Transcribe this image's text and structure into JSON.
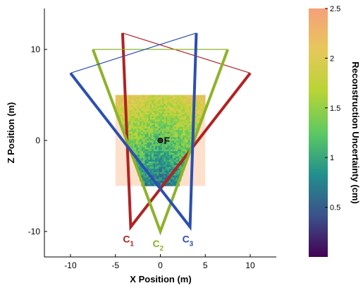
{
  "chart_data": {
    "type": "scatter",
    "title": "",
    "xlabel": "X Position (m)",
    "ylabel": "Z Position (m)",
    "xlim": [
      -12.9,
      12.9
    ],
    "ylim": [
      -12.8,
      14.5
    ],
    "x_ticks": [
      -10,
      -5,
      0,
      5,
      10
    ],
    "y_ticks": [
      -10,
      0,
      10
    ],
    "x_tick_labels": [
      "-10",
      "-5",
      "0",
      "5",
      "10"
    ],
    "y_tick_labels": [
      "-10",
      "0",
      "10"
    ],
    "grid": false,
    "point": {
      "label": "F",
      "x": 0,
      "y": 0
    },
    "background_region": {
      "x": [
        -5,
        5
      ],
      "z": [
        -5,
        5
      ],
      "color": "#fde0cc"
    },
    "cameras": [
      {
        "label": "C",
        "subscript": "1",
        "color": "#b22222",
        "apex": [
          -3.3,
          -9.5
        ],
        "far_left": [
          -4.2,
          11.8
        ],
        "far_right": [
          10,
          7.4
        ]
      },
      {
        "label": "C",
        "subscript": "2",
        "color": "#8db32a",
        "apex": [
          0,
          -10
        ],
        "far_left": [
          -7.5,
          10
        ],
        "far_right": [
          7.5,
          10
        ]
      },
      {
        "label": "C",
        "subscript": "3",
        "color": "#2c4faf",
        "apex": [
          3.3,
          -9.5
        ],
        "far_left": [
          -10,
          7.4
        ],
        "far_right": [
          4,
          11.8
        ]
      }
    ],
    "uncertainty_map": {
      "x": [
        -5,
        5
      ],
      "z": [
        -5,
        5
      ],
      "value_range": [
        0.4,
        2.5
      ],
      "description_gradient": "higher uncertainty at far (top) side, lower near cameras (bottom)"
    },
    "colorbar": {
      "label": "Reconstruction Uncertainty (cm)",
      "range": [
        0,
        2.5
      ],
      "ticks": [
        0.5,
        1,
        1.5,
        2,
        2.5
      ],
      "tick_labels": [
        "0.5",
        "1",
        "1.5",
        "2",
        "2.5"
      ],
      "colormap": [
        "#440154",
        "#3b528b",
        "#21908c",
        "#5ec962",
        "#b8d435",
        "#e6c85a",
        "#f5a07a"
      ]
    }
  }
}
